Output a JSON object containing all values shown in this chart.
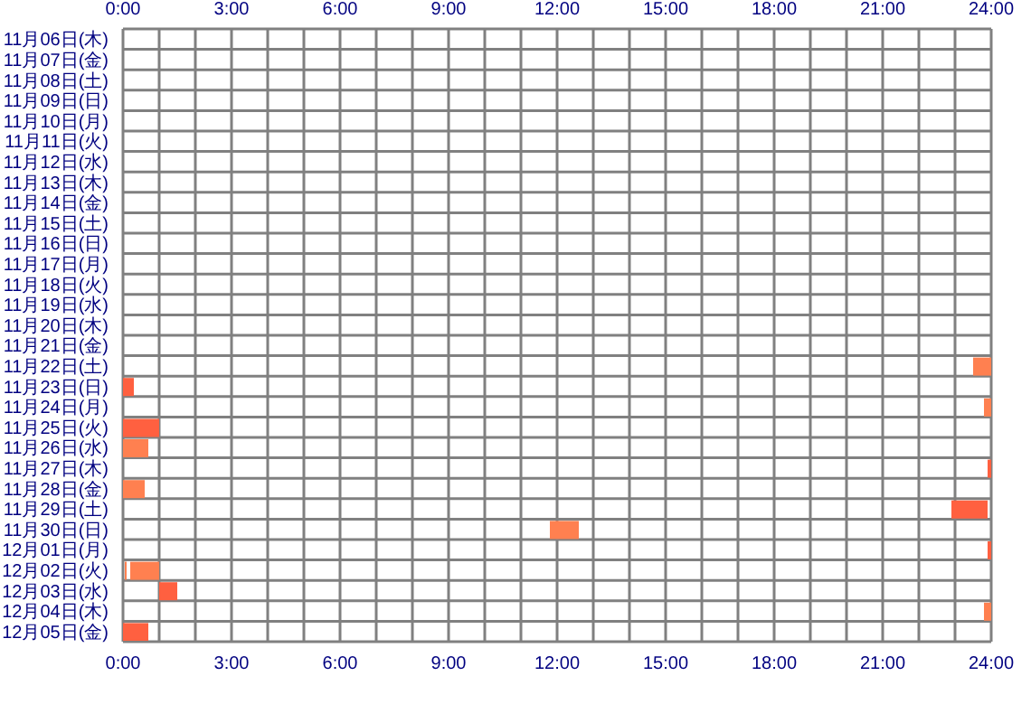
{
  "chart_data": {
    "type": "bar",
    "orientation": "horizontal",
    "grid": true,
    "legend": false,
    "categories": [
      "11月06日(木)",
      "11月07日(金)",
      "11月08日(土)",
      "11月09日(日)",
      "11月10日(月)",
      "11月11日(火)",
      "11月12日(水)",
      "11月13日(木)",
      "11月14日(金)",
      "11月15日(土)",
      "11月16日(日)",
      "11月17日(月)",
      "11月18日(火)",
      "11月19日(水)",
      "11月20日(木)",
      "11月21日(金)",
      "11月22日(土)",
      "11月23日(日)",
      "11月24日(月)",
      "11月25日(火)",
      "11月26日(水)",
      "11月27日(木)",
      "11月28日(金)",
      "11月29日(土)",
      "11月30日(日)",
      "12月01日(月)",
      "12月02日(火)",
      "12月03日(水)",
      "12月04日(木)",
      "12月05日(金)"
    ],
    "series": [
      {
        "base": [
          null,
          null,
          null,
          null,
          null,
          null,
          null,
          null,
          null,
          null,
          null,
          null,
          null,
          null,
          null,
          null,
          23.5,
          0,
          23.8,
          0,
          0,
          23.9,
          0,
          22.9,
          11.8,
          23.9,
          0.05,
          1.0,
          23.8,
          0
        ],
        "values": [
          null,
          null,
          null,
          null,
          null,
          null,
          null,
          null,
          null,
          null,
          null,
          null,
          null,
          null,
          null,
          null,
          0.5,
          0.3,
          0.2,
          1.0,
          0.7,
          0.1,
          0.6,
          1.0,
          0.8,
          0.1,
          0.05,
          0.5,
          0.2,
          0.7
        ],
        "colors": [
          null,
          null,
          null,
          null,
          null,
          null,
          null,
          null,
          null,
          null,
          null,
          null,
          null,
          null,
          null,
          null,
          "#ff8050",
          "#ff6040",
          "#ff8050",
          "#ff6040",
          "#ff8050",
          "#ff6040",
          "#ff8050",
          "#ff6040",
          "#ff8050",
          "#ff6040",
          "#ff8050",
          "#ff6040",
          "#ff8050",
          "#ff6040"
        ]
      },
      {
        "base": [
          null,
          null,
          null,
          null,
          null,
          null,
          null,
          null,
          null,
          null,
          null,
          null,
          null,
          null,
          null,
          null,
          null,
          null,
          null,
          null,
          null,
          null,
          null,
          null,
          null,
          null,
          0.2,
          null,
          null,
          null
        ],
        "values": [
          null,
          null,
          null,
          null,
          null,
          null,
          null,
          null,
          null,
          null,
          null,
          null,
          null,
          null,
          null,
          null,
          null,
          null,
          null,
          null,
          null,
          null,
          null,
          null,
          null,
          null,
          0.8,
          null,
          null,
          null
        ],
        "colors": [
          null,
          null,
          null,
          null,
          null,
          null,
          null,
          null,
          null,
          null,
          null,
          null,
          null,
          null,
          null,
          null,
          null,
          null,
          null,
          null,
          null,
          null,
          null,
          null,
          null,
          null,
          "#ff8050",
          null,
          null,
          null
        ]
      }
    ],
    "xlim": [
      0,
      24
    ],
    "xticks": [
      {
        "value": 0,
        "label": "0:00"
      },
      {
        "value": 3,
        "label": "3:00"
      },
      {
        "value": 6,
        "label": "6:00"
      },
      {
        "value": 9,
        "label": "9:00"
      },
      {
        "value": 12,
        "label": "12:00"
      },
      {
        "value": 15,
        "label": "15:00"
      },
      {
        "value": 18,
        "label": "18:00"
      },
      {
        "value": 21,
        "label": "21:00"
      },
      {
        "value": 24,
        "label": "24:00"
      }
    ],
    "x2lim": [
      0,
      24
    ],
    "x2ticks": [
      {
        "value": 0,
        "label": "0:00"
      },
      {
        "value": 1,
        "label": null
      },
      {
        "value": 2,
        "label": null
      },
      {
        "value": 3,
        "label": "3:00"
      },
      {
        "value": 4,
        "label": null
      },
      {
        "value": 5,
        "label": null
      },
      {
        "value": 6,
        "label": "6:00"
      },
      {
        "value": 7,
        "label": null
      },
      {
        "value": 8,
        "label": null
      },
      {
        "value": 9,
        "label": "9:00"
      },
      {
        "value": 10,
        "label": null
      },
      {
        "value": 11,
        "label": null
      },
      {
        "value": 12,
        "label": "12:00"
      },
      {
        "value": 13,
        "label": null
      },
      {
        "value": 14,
        "label": null
      },
      {
        "value": 15,
        "label": "15:00"
      },
      {
        "value": 16,
        "label": null
      },
      {
        "value": 17,
        "label": null
      },
      {
        "value": 18,
        "label": "18:00"
      },
      {
        "value": 19,
        "label": null
      },
      {
        "value": 20,
        "label": null
      },
      {
        "value": 21,
        "label": "21:00"
      },
      {
        "value": 22,
        "label": null
      },
      {
        "value": 23,
        "label": null
      },
      {
        "value": 24,
        "label": "24:00"
      }
    ]
  }
}
